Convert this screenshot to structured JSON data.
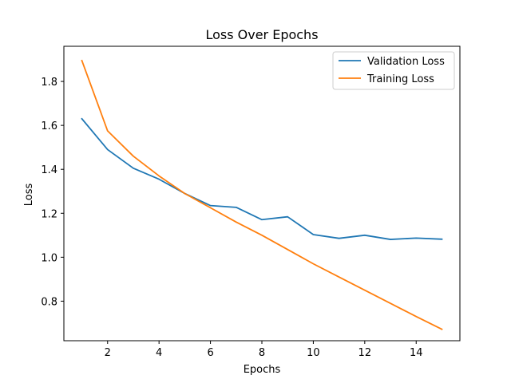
{
  "chart_data": {
    "type": "line",
    "title": "Loss Over Epochs",
    "xlabel": "Epochs",
    "ylabel": "Loss",
    "x": [
      1,
      2,
      3,
      4,
      5,
      6,
      7,
      8,
      9,
      10,
      11,
      12,
      13,
      14,
      15
    ],
    "xlim": [
      0.3,
      15.7
    ],
    "ylim": [
      0.62,
      1.96
    ],
    "xticks": [
      2,
      4,
      6,
      8,
      10,
      12,
      14
    ],
    "yticks": [
      0.8,
      1.0,
      1.2,
      1.4,
      1.6,
      1.8
    ],
    "ytick_labels": [
      "0.8",
      "1.0",
      "1.2",
      "1.4",
      "1.6",
      "1.8"
    ],
    "grid": false,
    "legend_position": "top-right",
    "series": [
      {
        "name": "Validation Loss",
        "color": "#1f77b4",
        "values": [
          1.63,
          1.49,
          1.405,
          1.355,
          1.29,
          1.235,
          1.227,
          1.171,
          1.184,
          1.103,
          1.086,
          1.1,
          1.081,
          1.087,
          1.082
        ]
      },
      {
        "name": "Training Loss",
        "color": "#ff7f0e",
        "values": [
          1.895,
          1.575,
          1.46,
          1.37,
          1.29,
          1.225,
          1.16,
          1.1,
          1.035,
          0.97,
          0.91,
          0.85,
          0.79,
          0.73,
          0.672
        ]
      }
    ]
  }
}
